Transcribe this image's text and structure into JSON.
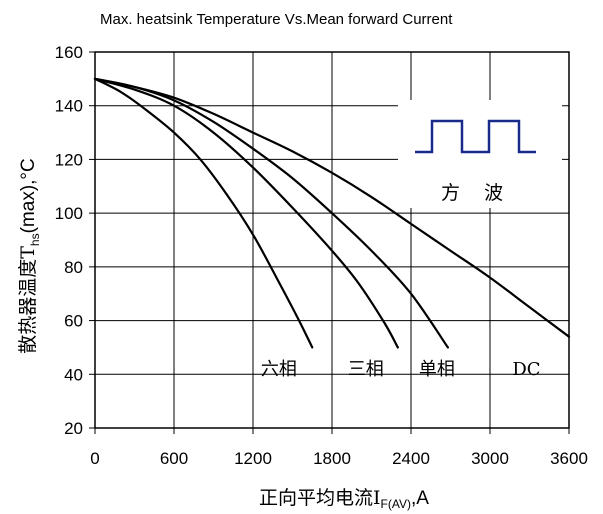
{
  "chart_data": {
    "type": "line",
    "title": "Max. heatsink Temperature Vs.Mean forward Current",
    "ylabel": {
      "main": "散热器温度T",
      "sub": "hs",
      "rest": "(max),°C"
    },
    "xlabel": {
      "main": "正向平均电流I",
      "sub": "F(AV)",
      "rest": ",A"
    },
    "xlim": [
      0,
      3600
    ],
    "ylim": [
      20,
      160
    ],
    "xticks": [
      0,
      600,
      1200,
      1800,
      2400,
      3000,
      3600
    ],
    "yticks": [
      20,
      40,
      60,
      80,
      100,
      120,
      140,
      160
    ],
    "xtick_labels": [
      "0",
      "600",
      "1200",
      "1800",
      "2400",
      "3000",
      "3600"
    ],
    "ytick_labels": [
      "20",
      "40",
      "60",
      "80",
      "100",
      "120",
      "140",
      "160"
    ],
    "grid": true,
    "inset_label": "方    波",
    "series": [
      {
        "name": "六相",
        "points": [
          [
            0,
            150
          ],
          [
            200,
            145
          ],
          [
            400,
            138
          ],
          [
            600,
            130
          ],
          [
            800,
            120
          ],
          [
            1000,
            107
          ],
          [
            1200,
            92
          ],
          [
            1400,
            74
          ],
          [
            1550,
            60
          ],
          [
            1650,
            50
          ]
        ]
      },
      {
        "name": "三相",
        "points": [
          [
            0,
            150
          ],
          [
            300,
            146
          ],
          [
            600,
            140
          ],
          [
            900,
            130
          ],
          [
            1200,
            117
          ],
          [
            1500,
            102
          ],
          [
            1800,
            86
          ],
          [
            2000,
            74
          ],
          [
            2200,
            59
          ],
          [
            2300,
            50
          ]
        ]
      },
      {
        "name": "单相",
        "points": [
          [
            0,
            150
          ],
          [
            300,
            147
          ],
          [
            600,
            142
          ],
          [
            900,
            134
          ],
          [
            1200,
            124
          ],
          [
            1500,
            113
          ],
          [
            1800,
            100
          ],
          [
            2100,
            86
          ],
          [
            2400,
            70
          ],
          [
            2680,
            50
          ]
        ]
      },
      {
        "name": "DC",
        "points": [
          [
            0,
            150
          ],
          [
            300,
            147
          ],
          [
            600,
            143
          ],
          [
            900,
            137
          ],
          [
            1200,
            130
          ],
          [
            1500,
            123
          ],
          [
            1800,
            115
          ],
          [
            2100,
            106
          ],
          [
            2400,
            96
          ],
          [
            2700,
            86
          ],
          [
            3000,
            76
          ],
          [
            3300,
            65
          ],
          [
            3600,
            54
          ]
        ]
      }
    ],
    "series_labels": [
      {
        "text": "六相",
        "x": 1260,
        "y": 42
      },
      {
        "text": "三相",
        "x": 1920,
        "y": 42
      },
      {
        "text": "单相",
        "x": 2460,
        "y": 42
      },
      {
        "text": "DC",
        "x": 3170,
        "y": 42
      }
    ]
  }
}
